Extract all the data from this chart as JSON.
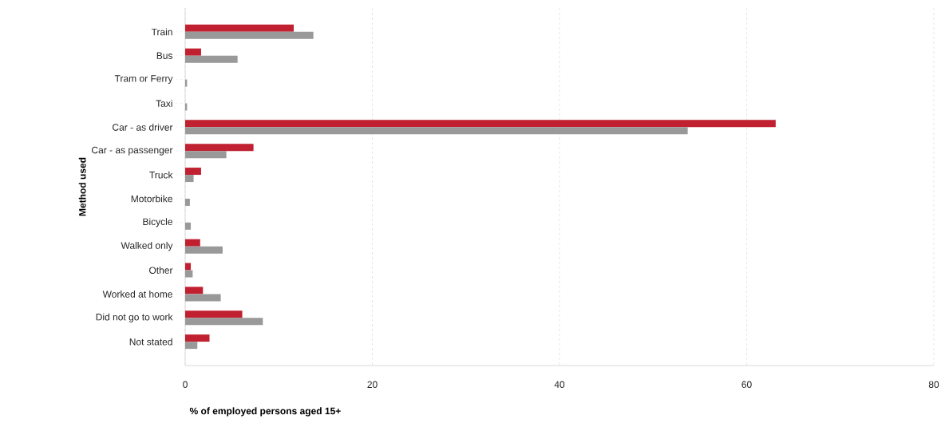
{
  "chart_data": {
    "type": "bar",
    "orientation": "horizontal",
    "xlabel": "% of employed persons aged 15+",
    "ylabel": "Method used",
    "categories": [
      "Train",
      "Bus",
      "Tram or Ferry",
      "Taxi",
      "Car - as driver",
      "Car - as passenger",
      "Truck",
      "Motorbike",
      "Bicycle",
      "Walked only",
      "Other",
      "Worked at home",
      "Did not go to work",
      "Not stated"
    ],
    "series": [
      {
        "color": "#c0202f",
        "values": [
          11.6,
          1.7,
          0,
          0,
          63.1,
          7.3,
          1.7,
          0,
          0,
          1.6,
          0.6,
          1.9,
          6.1,
          2.6
        ]
      },
      {
        "color": "#999999",
        "values": [
          13.7,
          5.6,
          0.2,
          0.2,
          53.7,
          4.4,
          0.9,
          0.5,
          0.6,
          4.0,
          0.8,
          3.8,
          8.3,
          1.3
        ]
      }
    ],
    "xlim": [
      0,
      80
    ],
    "xticks": [
      0,
      20,
      40,
      60,
      80
    ],
    "grid": "x"
  }
}
